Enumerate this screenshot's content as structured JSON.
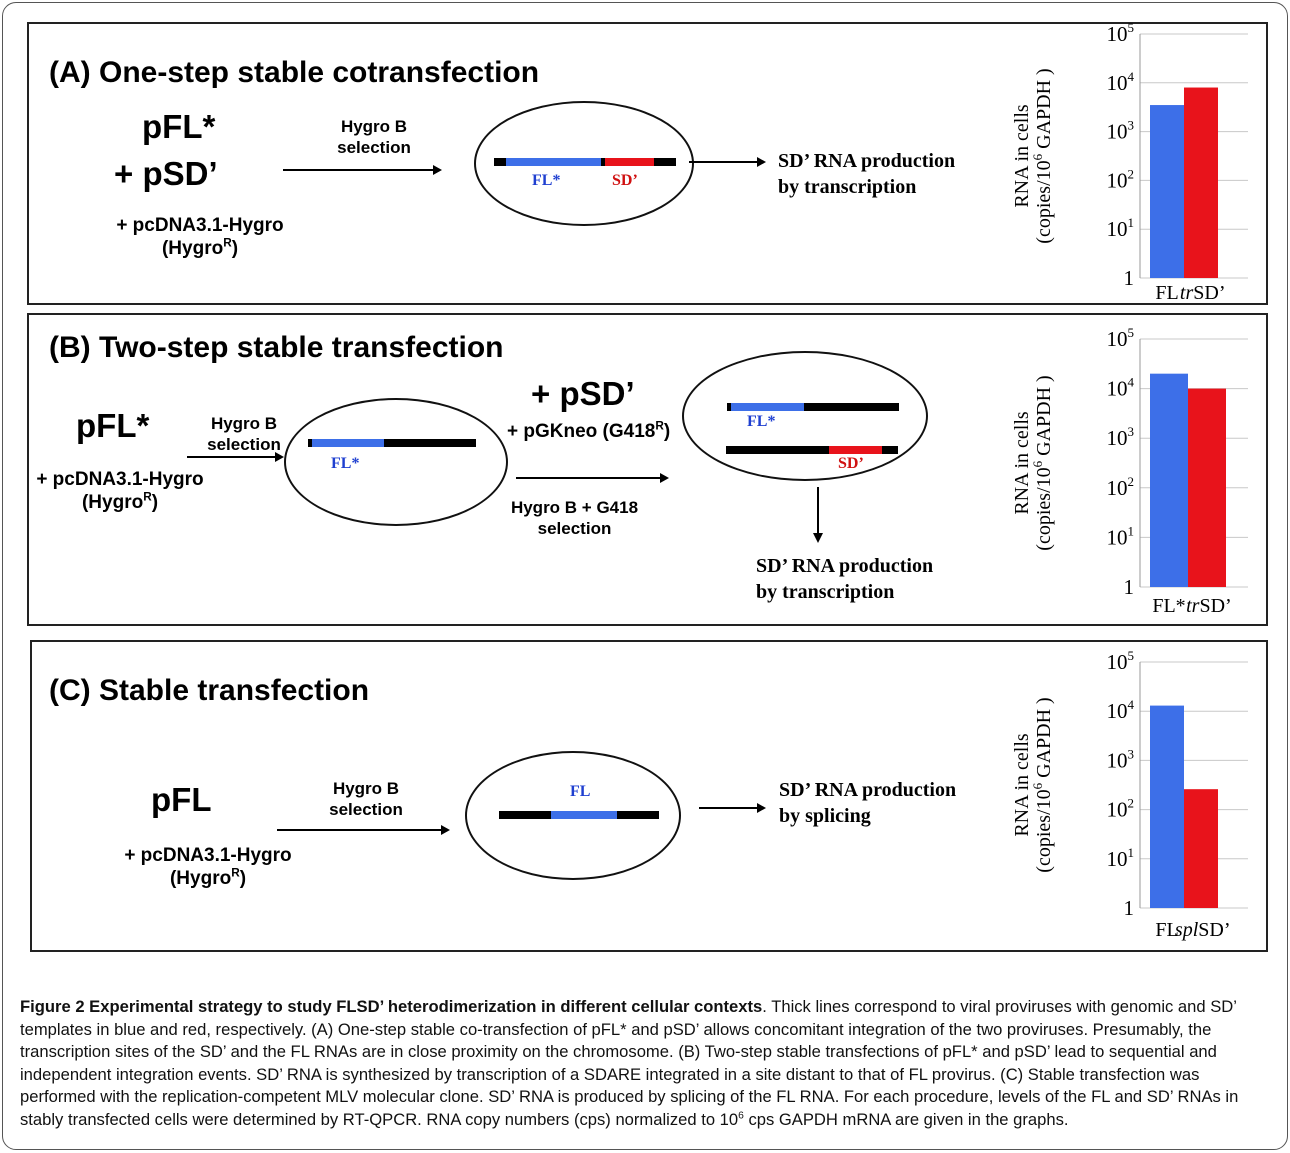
{
  "panelA": {
    "title": "(A)  One-step stable cotransfection",
    "plasmid1": "pFL*",
    "plasmid2": "+ pSD’",
    "helper": "+ pcDNA3.1-Hygro",
    "resistance": "(Hygro",
    "resistance_sup": "R",
    "resistance_end": ")",
    "sel1": "Hygro B",
    "sel2": "selection",
    "fl_label": "FL*",
    "sd_label": "SD’",
    "prod1": "SD’ RNA production",
    "prod2": "by transcription"
  },
  "panelB": {
    "title": "(B)  Two-step stable transfection",
    "plasmid1": "pFL*",
    "helper": "+ pcDNA3.1-Hygro",
    "resistance": "(Hygro",
    "resistance_sup": "R",
    "resistance_end": ")",
    "sel1": "Hygro B",
    "sel2": "selection",
    "fl_label": "FL*",
    "plasmid2": "+ pSD’",
    "neo": "+ pGKneo (G418",
    "neo_sup": "R",
    "neo_end": ")",
    "sel3": "Hygro B + G418",
    "sel4": "selection",
    "fl_label2": "FL*",
    "sd_label": "SD’",
    "prod1": "SD’ RNA production",
    "prod2": "by transcription"
  },
  "panelC": {
    "title": "(C)  Stable transfection",
    "plasmid": "pFL",
    "helper": "+ pcDNA3.1-Hygro",
    "resistance": "(Hygro",
    "resistance_sup": "R",
    "resistance_end": ")",
    "sel1": "Hygro B",
    "sel2": "selection",
    "fl_label": "FL",
    "prod1": "SD’ RNA production",
    "prod2": "by splicing"
  },
  "colors": {
    "fl": "#3d6fe8",
    "sd": "#e8131b",
    "provirus": "#000000"
  },
  "chart_data": [
    {
      "type": "bar",
      "ylabel_line1": "RNA in cells",
      "ylabel_line2": "(copies/10",
      "ylabel_sup": "6",
      "ylabel_end": " GAPDH )",
      "yscale": "log",
      "ylim": [
        1,
        100000
      ],
      "ytick_labels": [
        "1",
        "10",
        "10",
        "10",
        "10",
        "10"
      ],
      "ytick_sups": [
        "",
        "1",
        "2",
        "3",
        "4",
        "5"
      ],
      "categories": [
        "FL",
        "trSD’"
      ],
      "values": [
        3500,
        8000
      ],
      "colors": [
        "#3d6fe8",
        "#e8131b"
      ],
      "grid": true
    },
    {
      "type": "bar",
      "ylabel_line1": "RNA in cells",
      "ylabel_line2": "(copies/10",
      "ylabel_sup": "6",
      "ylabel_end": " GAPDH )",
      "yscale": "log",
      "ylim": [
        1,
        100000
      ],
      "ytick_labels": [
        "1",
        "10",
        "10",
        "10",
        "10",
        "10"
      ],
      "ytick_sups": [
        "",
        "1",
        "2",
        "3",
        "4",
        "5"
      ],
      "categories": [
        "FL*",
        "trSD’"
      ],
      "values": [
        20000,
        10000
      ],
      "colors": [
        "#3d6fe8",
        "#e8131b"
      ],
      "grid": true
    },
    {
      "type": "bar",
      "ylabel_line1": "RNA in cells",
      "ylabel_line2": "(copies/10",
      "ylabel_sup": "6",
      "ylabel_end": " GAPDH )",
      "yscale": "log",
      "ylim": [
        1,
        100000
      ],
      "ytick_labels": [
        "1",
        "10",
        "10",
        "10",
        "10",
        "10"
      ],
      "ytick_sups": [
        "",
        "1",
        "2",
        "3",
        "4",
        "5"
      ],
      "categories": [
        "FL",
        "splSD’"
      ],
      "values": [
        13000,
        260
      ],
      "colors": [
        "#3d6fe8",
        "#e8131b"
      ],
      "grid": true
    }
  ],
  "caption": {
    "label": "Figure 2 Experimental strategy to study FLSD’ heterodimerization in different cellular contexts",
    "text_a": ". Thick lines correspond to viral proviruses with genomic and SD’ templates in blue and red, respectively. (A) One-step stable co-transfection of pFL* and pSD’ allows concomitant integration of the two proviruses. Presumably, the transcription sites of the SD’ and the FL RNAs are in close proximity on the chromosome. (B) Two-step stable transfections of pFL* and pSD’ lead to sequential and independent integration events. SD’ RNA is synthesized by transcription of a SDARE integrated in a site distant to that of FL provirus. (C) Stable transfection was performed with the replication-competent MLV molecular clone. SD’ RNA is produced by splicing of the FL RNA. For each procedure, levels of the FL and SD’ RNAs in stably transfected cells were determined by RT-QPCR. RNA copy numbers (cps) normalized to 10",
    "sup": "6",
    "text_b": " cps GAPDH mRNA are given in the graphs."
  }
}
